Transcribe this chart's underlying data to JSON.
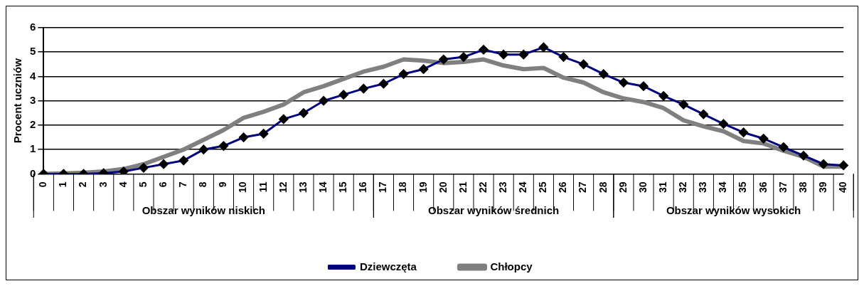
{
  "chart_data": {
    "type": "line",
    "ylabel": "Procent uczniów",
    "categories": [
      "0",
      "1",
      "2",
      "3",
      "4",
      "5",
      "6",
      "7",
      "8",
      "9",
      "10",
      "11",
      "12",
      "13",
      "14",
      "15",
      "16",
      "17",
      "18",
      "19",
      "20",
      "21",
      "22",
      "23",
      "24",
      "25",
      "26",
      "27",
      "28",
      "29",
      "30",
      "31",
      "32",
      "33",
      "34",
      "35",
      "36",
      "37",
      "38",
      "39",
      "40"
    ],
    "series": [
      {
        "name": "Dziewczęta",
        "color": "#000080",
        "marker": "diamond",
        "values": [
          0,
          0,
          0,
          0.03,
          0.1,
          0.25,
          0.4,
          0.55,
          1.0,
          1.15,
          1.5,
          1.65,
          2.25,
          2.5,
          3.0,
          3.25,
          3.5,
          3.7,
          4.1,
          4.3,
          4.7,
          4.8,
          5.1,
          4.9,
          4.9,
          5.2,
          4.8,
          4.5,
          4.1,
          3.75,
          3.6,
          3.2,
          2.85,
          2.45,
          2.05,
          1.7,
          1.45,
          1.1,
          0.75,
          0.4,
          0.35
        ]
      },
      {
        "name": "Chłopcy",
        "color": "#808080",
        "marker": "none",
        "values": [
          0,
          0.02,
          0.05,
          0.1,
          0.2,
          0.4,
          0.7,
          1.0,
          1.4,
          1.8,
          2.3,
          2.55,
          2.85,
          3.35,
          3.6,
          3.9,
          4.2,
          4.4,
          4.7,
          4.65,
          4.55,
          4.6,
          4.7,
          4.45,
          4.3,
          4.35,
          3.95,
          3.75,
          3.35,
          3.1,
          2.95,
          2.7,
          2.2,
          1.95,
          1.75,
          1.35,
          1.25,
          0.95,
          0.7,
          0.3,
          0.3
        ]
      }
    ],
    "ylim": [
      0,
      6
    ],
    "yticks": [
      0,
      1,
      2,
      3,
      4,
      5,
      6
    ],
    "grid": "y",
    "legend": "bottom",
    "annotations": [
      "Obszar wyników niskich",
      "Obszar wyników średnich",
      "Obszar wyników wysokich"
    ]
  }
}
